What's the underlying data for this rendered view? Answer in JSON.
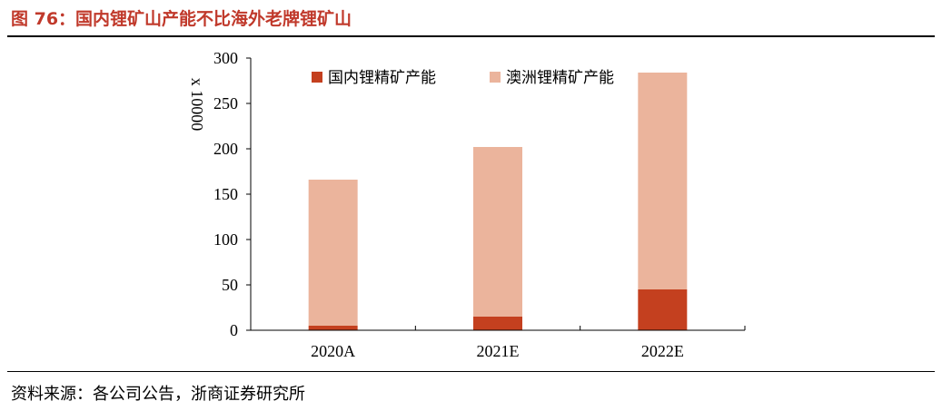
{
  "header": {
    "title": "图 76：国内锂矿山产能不比海外老牌锂矿山"
  },
  "footer": {
    "source": "资料来源：各公司公告，浙商证券研究所"
  },
  "colors": {
    "domestic": "#c4401f",
    "australia": "#ebb49c",
    "title": "#c0392b"
  },
  "chart_data": {
    "type": "bar",
    "stacked": true,
    "categories": [
      "2020A",
      "2021E",
      "2022E"
    ],
    "series": [
      {
        "name": "国内锂精矿产能",
        "values": [
          5,
          15,
          45
        ]
      },
      {
        "name": "澳洲锂精矿产能",
        "values": [
          161,
          187,
          239
        ]
      }
    ],
    "ylabel": "x 10000",
    "ylim": [
      0,
      300
    ],
    "yticks": [
      0,
      50,
      100,
      150,
      200,
      250,
      300
    ],
    "grid": false,
    "legend": "top"
  }
}
